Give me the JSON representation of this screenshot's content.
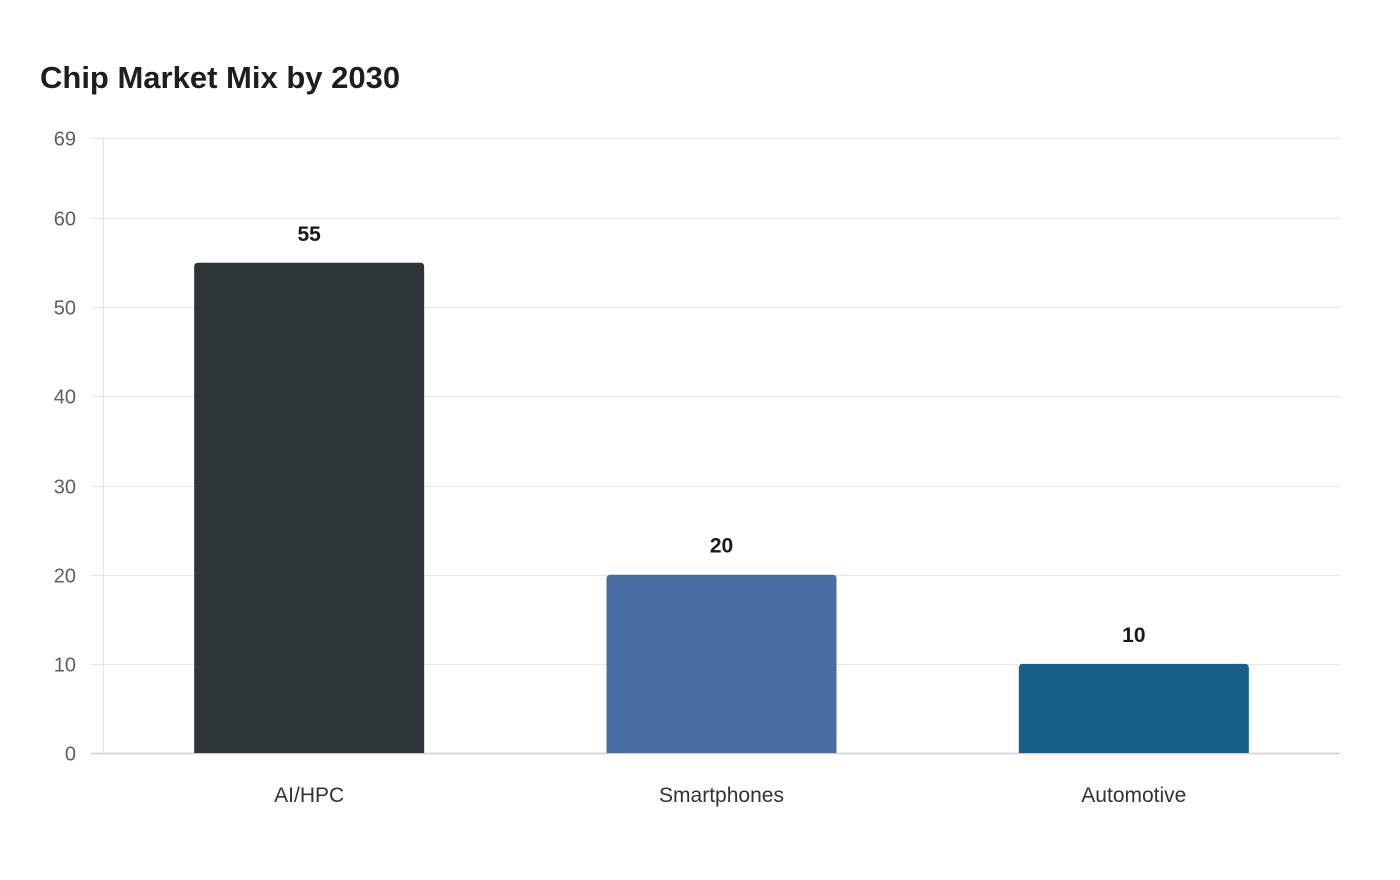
{
  "chart_data": {
    "type": "bar",
    "title": "Chip Market Mix by 2030",
    "xlabel": "",
    "ylabel": "",
    "categories": [
      "AI/HPC",
      "Smartphones",
      "Automotive"
    ],
    "values": [
      55,
      20,
      10
    ],
    "value_labels": [
      "55",
      "20",
      "10"
    ],
    "bar_colors": [
      "#2e3538",
      "#4a6da3",
      "#175f88"
    ],
    "ylim": [
      0,
      69
    ],
    "yticks": [
      0,
      10,
      20,
      30,
      40,
      50,
      60,
      69
    ],
    "grid": true,
    "legend": "none"
  }
}
